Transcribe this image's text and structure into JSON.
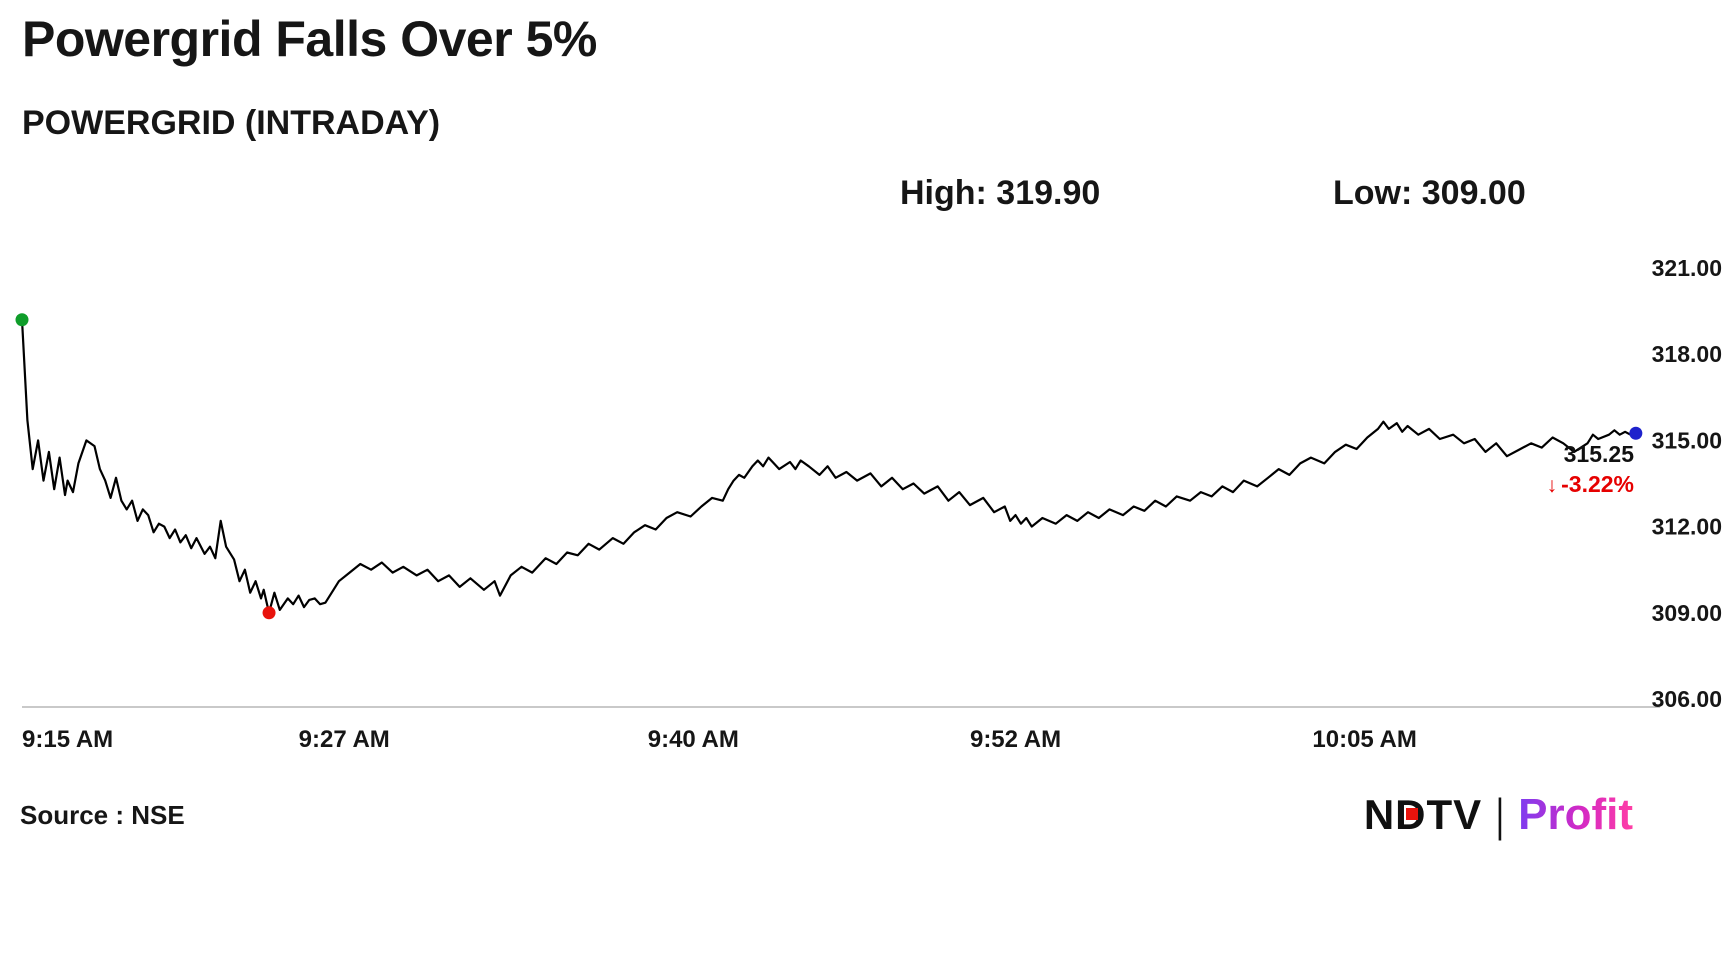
{
  "header": {
    "title": "Powergrid Falls Over 5%",
    "subtitle": "POWERGRID (INTRADAY)",
    "high_label": "High: 319.90",
    "low_label": "Low: 309.00"
  },
  "annotation": {
    "price": "315.25",
    "arrow": "↓",
    "change": "-3.22%",
    "change_color": "#e60000"
  },
  "footer": {
    "source": "Source : NSE",
    "logo": {
      "ndtv": "NDTV",
      "separator": "|",
      "profit": "Profit"
    }
  },
  "chart_data": {
    "type": "line",
    "title": "Powergrid Falls Over 5%",
    "series_name": "POWERGRID intraday price",
    "x_unit": "minutes since 9:15 AM",
    "xlim": [
      0,
      61
    ],
    "ylim": [
      306,
      321
    ],
    "grid": false,
    "high": 319.9,
    "low": 309.0,
    "last": 315.25,
    "change_pct": -3.22,
    "line_color": "#000000",
    "y_ticks": [
      321.0,
      318.0,
      315.0,
      312.0,
      309.0,
      306.0
    ],
    "y_tick_labels": [
      "321.00",
      "318.00",
      "315.00",
      "312.00",
      "309.00",
      "306.00"
    ],
    "x_ticks": [
      {
        "label": "9:15 AM",
        "minute": 0
      },
      {
        "label": "9:27 AM",
        "minute": 12
      },
      {
        "label": "9:40 AM",
        "minute": 25
      },
      {
        "label": "9:52 AM",
        "minute": 37
      },
      {
        "label": "10:05 AM",
        "minute": 50
      }
    ],
    "markers": [
      {
        "name": "open",
        "color": "#0f9d2a",
        "minute": 0,
        "price": 319.2
      },
      {
        "name": "low",
        "color": "#e8130c",
        "minute": 9.2,
        "price": 309.0
      },
      {
        "name": "last",
        "color": "#1e22cc",
        "minute": 60.1,
        "price": 315.25
      }
    ],
    "points": [
      [
        0,
        319.2
      ],
      [
        0.2,
        315.7
      ],
      [
        0.4,
        314.0
      ],
      [
        0.6,
        315.0
      ],
      [
        0.8,
        313.6
      ],
      [
        1.0,
        314.6
      ],
      [
        1.2,
        313.3
      ],
      [
        1.4,
        314.4
      ],
      [
        1.6,
        313.1
      ],
      [
        1.7,
        313.6
      ],
      [
        1.9,
        313.2
      ],
      [
        2.1,
        314.2
      ],
      [
        2.4,
        315.0
      ],
      [
        2.7,
        314.8
      ],
      [
        2.9,
        314.0
      ],
      [
        3.1,
        313.6
      ],
      [
        3.3,
        313.0
      ],
      [
        3.5,
        313.7
      ],
      [
        3.7,
        312.9
      ],
      [
        3.9,
        312.6
      ],
      [
        4.1,
        312.9
      ],
      [
        4.3,
        312.2
      ],
      [
        4.5,
        312.6
      ],
      [
        4.7,
        312.4
      ],
      [
        4.9,
        311.8
      ],
      [
        5.1,
        312.1
      ],
      [
        5.3,
        312.0
      ],
      [
        5.5,
        311.6
      ],
      [
        5.7,
        311.9
      ],
      [
        5.9,
        311.45
      ],
      [
        6.1,
        311.7
      ],
      [
        6.3,
        311.25
      ],
      [
        6.5,
        311.6
      ],
      [
        6.8,
        311.05
      ],
      [
        7.0,
        311.3
      ],
      [
        7.2,
        310.9
      ],
      [
        7.4,
        312.2
      ],
      [
        7.6,
        311.3
      ],
      [
        7.9,
        310.85
      ],
      [
        8.1,
        310.1
      ],
      [
        8.3,
        310.5
      ],
      [
        8.5,
        309.7
      ],
      [
        8.7,
        310.1
      ],
      [
        8.9,
        309.5
      ],
      [
        9.0,
        309.8
      ],
      [
        9.2,
        309.0
      ],
      [
        9.4,
        309.7
      ],
      [
        9.6,
        309.1
      ],
      [
        9.9,
        309.5
      ],
      [
        10.1,
        309.3
      ],
      [
        10.3,
        309.6
      ],
      [
        10.5,
        309.2
      ],
      [
        10.7,
        309.45
      ],
      [
        10.9,
        309.5
      ],
      [
        11.1,
        309.3
      ],
      [
        11.3,
        309.35
      ],
      [
        11.6,
        309.8
      ],
      [
        11.8,
        310.1
      ],
      [
        12.2,
        310.4
      ],
      [
        12.6,
        310.7
      ],
      [
        13.0,
        310.5
      ],
      [
        13.4,
        310.75
      ],
      [
        13.8,
        310.4
      ],
      [
        14.2,
        310.6
      ],
      [
        14.7,
        310.3
      ],
      [
        15.1,
        310.5
      ],
      [
        15.5,
        310.1
      ],
      [
        15.9,
        310.3
      ],
      [
        16.3,
        309.9
      ],
      [
        16.7,
        310.2
      ],
      [
        17.2,
        309.8
      ],
      [
        17.6,
        310.1
      ],
      [
        17.8,
        309.6
      ],
      [
        18.2,
        310.3
      ],
      [
        18.6,
        310.6
      ],
      [
        19.0,
        310.4
      ],
      [
        19.5,
        310.9
      ],
      [
        19.9,
        310.7
      ],
      [
        20.3,
        311.1
      ],
      [
        20.7,
        311.0
      ],
      [
        21.1,
        311.4
      ],
      [
        21.5,
        311.2
      ],
      [
        22.0,
        311.6
      ],
      [
        22.4,
        311.4
      ],
      [
        22.8,
        311.8
      ],
      [
        23.2,
        312.05
      ],
      [
        23.6,
        311.9
      ],
      [
        24.0,
        312.3
      ],
      [
        24.4,
        312.5
      ],
      [
        24.9,
        312.35
      ],
      [
        25.3,
        312.7
      ],
      [
        25.7,
        313.0
      ],
      [
        26.1,
        312.9
      ],
      [
        26.3,
        313.3
      ],
      [
        26.5,
        313.6
      ],
      [
        26.7,
        313.8
      ],
      [
        26.9,
        313.7
      ],
      [
        27.2,
        314.1
      ],
      [
        27.4,
        314.3
      ],
      [
        27.6,
        314.1
      ],
      [
        27.8,
        314.4
      ],
      [
        28.0,
        314.2
      ],
      [
        28.2,
        314.0
      ],
      [
        28.6,
        314.25
      ],
      [
        28.8,
        314.0
      ],
      [
        29.0,
        314.3
      ],
      [
        29.3,
        314.1
      ],
      [
        29.7,
        313.8
      ],
      [
        30.0,
        314.1
      ],
      [
        30.3,
        313.7
      ],
      [
        30.7,
        313.9
      ],
      [
        31.1,
        313.6
      ],
      [
        31.6,
        313.85
      ],
      [
        32.0,
        313.4
      ],
      [
        32.4,
        313.7
      ],
      [
        32.8,
        313.3
      ],
      [
        33.2,
        313.5
      ],
      [
        33.6,
        313.15
      ],
      [
        34.1,
        313.4
      ],
      [
        34.5,
        312.9
      ],
      [
        34.9,
        313.2
      ],
      [
        35.3,
        312.75
      ],
      [
        35.8,
        313.0
      ],
      [
        36.2,
        312.5
      ],
      [
        36.6,
        312.7
      ],
      [
        36.8,
        312.2
      ],
      [
        37.0,
        312.4
      ],
      [
        37.2,
        312.1
      ],
      [
        37.4,
        312.3
      ],
      [
        37.6,
        312.0
      ],
      [
        38.0,
        312.3
      ],
      [
        38.5,
        312.1
      ],
      [
        38.9,
        312.4
      ],
      [
        39.3,
        312.2
      ],
      [
        39.7,
        312.5
      ],
      [
        40.1,
        312.3
      ],
      [
        40.5,
        312.6
      ],
      [
        41.0,
        312.4
      ],
      [
        41.4,
        312.7
      ],
      [
        41.8,
        312.55
      ],
      [
        42.2,
        312.9
      ],
      [
        42.6,
        312.7
      ],
      [
        43.0,
        313.05
      ],
      [
        43.5,
        312.9
      ],
      [
        43.9,
        313.2
      ],
      [
        44.3,
        313.05
      ],
      [
        44.7,
        313.4
      ],
      [
        45.1,
        313.2
      ],
      [
        45.5,
        313.6
      ],
      [
        46.0,
        313.4
      ],
      [
        46.4,
        313.7
      ],
      [
        46.8,
        314.0
      ],
      [
        47.2,
        313.8
      ],
      [
        47.6,
        314.2
      ],
      [
        48.0,
        314.4
      ],
      [
        48.5,
        314.2
      ],
      [
        48.9,
        314.6
      ],
      [
        49.3,
        314.85
      ],
      [
        49.7,
        314.7
      ],
      [
        50.1,
        315.1
      ],
      [
        50.5,
        315.4
      ],
      [
        50.7,
        315.65
      ],
      [
        50.9,
        315.4
      ],
      [
        51.2,
        315.6
      ],
      [
        51.4,
        315.3
      ],
      [
        51.6,
        315.5
      ],
      [
        52.0,
        315.2
      ],
      [
        52.4,
        315.4
      ],
      [
        52.8,
        315.05
      ],
      [
        53.3,
        315.2
      ],
      [
        53.7,
        314.9
      ],
      [
        54.1,
        315.05
      ],
      [
        54.5,
        314.6
      ],
      [
        54.9,
        314.9
      ],
      [
        55.3,
        314.45
      ],
      [
        55.8,
        314.7
      ],
      [
        56.2,
        314.9
      ],
      [
        56.6,
        314.75
      ],
      [
        57.0,
        315.1
      ],
      [
        57.4,
        314.9
      ],
      [
        57.8,
        314.6
      ],
      [
        58.3,
        314.9
      ],
      [
        58.5,
        315.2
      ],
      [
        58.7,
        315.05
      ],
      [
        59.1,
        315.2
      ],
      [
        59.3,
        315.35
      ],
      [
        59.5,
        315.2
      ],
      [
        59.7,
        315.3
      ],
      [
        59.9,
        315.2
      ],
      [
        60.1,
        315.25
      ]
    ]
  }
}
